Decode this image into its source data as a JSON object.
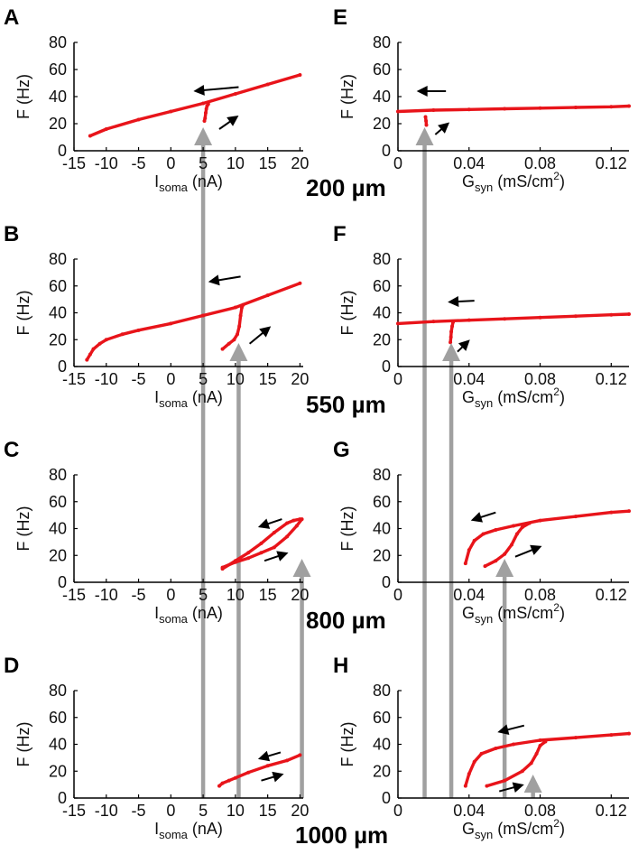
{
  "figure": {
    "distance_labels": [
      "200 µm",
      "550 µm",
      "800 µm",
      "1000 µm"
    ],
    "colors": {
      "curve": "#e8141a",
      "guide": "#a0a0a0",
      "arrow": "#000000",
      "axis": "#000000"
    }
  },
  "chart_data": [
    {
      "panel": "A",
      "type": "scatter",
      "xlabel": "Isoma (nA)",
      "xlabel_main": "I",
      "xlabel_sub": "soma",
      "xlabel_rest": " (nA)",
      "ylabel": "F (Hz)",
      "xlim": [
        -15,
        20.5
      ],
      "ylim": [
        0,
        80
      ],
      "xticks": [
        -15,
        -10,
        -5,
        0,
        5,
        10,
        15,
        20
      ],
      "xtick_labels": [
        "-15",
        "-10",
        "-5",
        "0",
        "5",
        "10",
        "15",
        "20"
      ],
      "yticks": [
        0,
        20,
        40,
        60,
        80
      ],
      "ytick_labels": [
        "0",
        "20",
        "40",
        "60",
        "80"
      ],
      "series": [
        {
          "points": [
            [
              -12.5,
              11
            ],
            [
              -10,
              16
            ],
            [
              -5,
              23
            ],
            [
              0,
              29
            ],
            [
              5,
              35
            ],
            [
              10,
              42
            ],
            [
              15,
              49
            ],
            [
              20,
              56
            ]
          ]
        },
        {
          "points": [
            [
              5.2,
              22
            ],
            [
              5.3,
              24
            ],
            [
              5.4,
              28
            ],
            [
              5.5,
              31
            ],
            [
              5.6,
              33
            ],
            [
              5.8,
              34.5
            ]
          ]
        }
      ],
      "arrows": [
        {
          "from": [
            10.5,
            47
          ],
          "to": [
            3.5,
            44
          ]
        },
        {
          "from": [
            7.5,
            16
          ],
          "to": [
            10.5,
            26
          ]
        }
      ],
      "guides": [
        5
      ]
    },
    {
      "panel": "B",
      "type": "scatter",
      "xlabel": "Isoma (nA)",
      "xlabel_main": "I",
      "xlabel_sub": "soma",
      "xlabel_rest": " (nA)",
      "ylabel": "F (Hz)",
      "xlim": [
        -15,
        20.5
      ],
      "ylim": [
        0,
        80
      ],
      "xticks": [
        -15,
        -10,
        -5,
        0,
        5,
        10,
        15,
        20
      ],
      "xtick_labels": [
        "-15",
        "-10",
        "-5",
        "0",
        "5",
        "10",
        "15",
        "20"
      ],
      "yticks": [
        0,
        20,
        40,
        60,
        80
      ],
      "ytick_labels": [
        "0",
        "20",
        "40",
        "60",
        "80"
      ],
      "series": [
        {
          "points": [
            [
              -13,
              5
            ],
            [
              -12.5,
              9
            ],
            [
              -12,
              13
            ],
            [
              -11,
              17
            ],
            [
              -10,
              20
            ],
            [
              -7.5,
              24
            ],
            [
              -5,
              27
            ],
            [
              0,
              32
            ],
            [
              5,
              38
            ],
            [
              10,
              44
            ],
            [
              15,
              53
            ],
            [
              20,
              62
            ]
          ]
        },
        {
          "points": [
            [
              8,
              13
            ],
            [
              9,
              17
            ],
            [
              9.8,
              20
            ],
            [
              10.3,
              24
            ],
            [
              10.6,
              30
            ],
            [
              10.8,
              38
            ],
            [
              11,
              44
            ],
            [
              11.2,
              46
            ]
          ]
        }
      ],
      "arrows": [
        {
          "from": [
            10.8,
            67
          ],
          "to": [
            5.8,
            63
          ]
        },
        {
          "from": [
            12.2,
            17
          ],
          "to": [
            15.5,
            30
          ]
        }
      ],
      "guides": [
        5,
        10.5
      ]
    },
    {
      "panel": "C",
      "type": "scatter",
      "xlabel": "Isoma (nA)",
      "xlabel_main": "I",
      "xlabel_sub": "soma",
      "xlabel_rest": " (nA)",
      "ylabel": "F (Hz)",
      "xlim": [
        -15,
        20.5
      ],
      "ylim": [
        0,
        80
      ],
      "xticks": [
        -15,
        -10,
        -5,
        0,
        5,
        10,
        15,
        20
      ],
      "xtick_labels": [
        "-15",
        "-10",
        "-5",
        "0",
        "5",
        "10",
        "15",
        "20"
      ],
      "yticks": [
        0,
        20,
        40,
        60,
        80
      ],
      "ytick_labels": [
        "0",
        "20",
        "40",
        "60",
        "80"
      ],
      "series": [
        {
          "points": [
            [
              8,
              10
            ],
            [
              10,
              16
            ],
            [
              12,
              22
            ],
            [
              14,
              29
            ],
            [
              16,
              37
            ],
            [
              18,
              44
            ],
            [
              19,
              46
            ],
            [
              20,
              47
            ]
          ]
        },
        {
          "points": [
            [
              8,
              11
            ],
            [
              10,
              15
            ],
            [
              12,
              18
            ],
            [
              14,
              22
            ],
            [
              16,
              26
            ],
            [
              18,
              34
            ],
            [
              19.5,
              42
            ],
            [
              20.3,
              47
            ]
          ]
        }
      ],
      "arrows": [
        {
          "from": [
            17.2,
            47
          ],
          "to": [
            13.5,
            41
          ]
        },
        {
          "from": [
            14.5,
            16
          ],
          "to": [
            18.2,
            22
          ]
        }
      ],
      "guides": [
        5,
        10.5,
        20.3
      ]
    },
    {
      "panel": "D",
      "type": "scatter",
      "xlabel": "Isoma (nA)",
      "xlabel_main": "I",
      "xlabel_sub": "soma",
      "xlabel_rest": " (nA)",
      "ylabel": "F (Hz)",
      "xlim": [
        -15,
        20.5
      ],
      "ylim": [
        0,
        80
      ],
      "xticks": [
        -15,
        -10,
        -5,
        0,
        5,
        10,
        15,
        20
      ],
      "xtick_labels": [
        "-15",
        "-10",
        "-5",
        "0",
        "5",
        "10",
        "15",
        "20"
      ],
      "yticks": [
        0,
        20,
        40,
        60,
        80
      ],
      "ytick_labels": [
        "0",
        "20",
        "40",
        "60",
        "80"
      ],
      "series": [
        {
          "points": [
            [
              7.5,
              9
            ],
            [
              8,
              11
            ],
            [
              9,
              13
            ],
            [
              10,
              15
            ],
            [
              12,
              19
            ],
            [
              15,
              24
            ],
            [
              18,
              28
            ],
            [
              20,
              32
            ]
          ]
        }
      ],
      "arrows": [
        {
          "from": [
            17,
            34
          ],
          "to": [
            13.5,
            29
          ]
        },
        {
          "from": [
            14,
            13
          ],
          "to": [
            17.5,
            18
          ]
        }
      ],
      "guides": [
        5,
        10.5,
        20.3
      ]
    },
    {
      "panel": "E",
      "type": "scatter",
      "xlabel": "Gsyn (mS/cm2)",
      "xlabel_main": "G",
      "xlabel_sub": "syn",
      "xlabel_rest": " (mS/cm",
      "xlabel_sup": "2",
      "xlabel_end": ")",
      "ylabel": "F (Hz)",
      "xlim": [
        0,
        0.13
      ],
      "ylim": [
        0,
        80
      ],
      "xticks": [
        0,
        0.04,
        0.08,
        0.12
      ],
      "xtick_labels": [
        "0",
        "0.04",
        "0.08",
        "0.12"
      ],
      "yticks": [
        0,
        20,
        40,
        60,
        80
      ],
      "ytick_labels": [
        "0",
        "20",
        "40",
        "60",
        "80"
      ],
      "series": [
        {
          "points": [
            [
              0,
              29
            ],
            [
              0.02,
              30
            ],
            [
              0.04,
              30.5
            ],
            [
              0.06,
              31
            ],
            [
              0.08,
              31.5
            ],
            [
              0.1,
              32
            ],
            [
              0.12,
              32.5
            ],
            [
              0.13,
              33
            ]
          ]
        },
        {
          "points": [
            [
              0.0155,
              25
            ],
            [
              0.0158,
              22
            ],
            [
              0.016,
              19
            ]
          ]
        }
      ],
      "arrows": [
        {
          "from": [
            0.027,
            44
          ],
          "to": [
            0.0105,
            44
          ]
        },
        {
          "from": [
            0.021,
            12
          ],
          "to": [
            0.029,
            21
          ]
        }
      ],
      "guides": [
        0.015
      ]
    },
    {
      "panel": "F",
      "type": "scatter",
      "xlabel": "Gsyn (mS/cm2)",
      "xlabel_main": "G",
      "xlabel_sub": "syn",
      "xlabel_rest": " (mS/cm",
      "xlabel_sup": "2",
      "xlabel_end": ")",
      "ylabel": "F (Hz)",
      "xlim": [
        0,
        0.13
      ],
      "ylim": [
        0,
        80
      ],
      "xticks": [
        0,
        0.04,
        0.08,
        0.12
      ],
      "xtick_labels": [
        "0",
        "0.04",
        "0.08",
        "0.12"
      ],
      "yticks": [
        0,
        20,
        40,
        60,
        80
      ],
      "ytick_labels": [
        "0",
        "20",
        "40",
        "60",
        "80"
      ],
      "series": [
        {
          "points": [
            [
              0,
              32
            ],
            [
              0.02,
              33.5
            ],
            [
              0.04,
              34.5
            ],
            [
              0.06,
              35.5
            ],
            [
              0.08,
              36.5
            ],
            [
              0.1,
              37.5
            ],
            [
              0.12,
              38.5
            ],
            [
              0.13,
              39
            ]
          ]
        },
        {
          "points": [
            [
              0.0295,
              18
            ],
            [
              0.0298,
              22
            ],
            [
              0.03,
              26
            ],
            [
              0.0305,
              30
            ],
            [
              0.031,
              33
            ]
          ]
        }
      ],
      "arrows": [
        {
          "from": [
            0.043,
            49
          ],
          "to": [
            0.028,
            48
          ]
        },
        {
          "from": [
            0.0335,
            11
          ],
          "to": [
            0.0405,
            20
          ]
        }
      ],
      "guides": [
        0.015,
        0.03
      ]
    },
    {
      "panel": "G",
      "type": "scatter",
      "xlabel": "Gsyn (mS/cm2)",
      "xlabel_main": "G",
      "xlabel_sub": "syn",
      "xlabel_rest": " (mS/cm",
      "xlabel_sup": "2",
      "xlabel_end": ")",
      "ylabel": "F (Hz)",
      "xlim": [
        0,
        0.13
      ],
      "ylim": [
        0,
        80
      ],
      "xticks": [
        0,
        0.04,
        0.08,
        0.12
      ],
      "xtick_labels": [
        "0",
        "0.04",
        "0.08",
        "0.12"
      ],
      "yticks": [
        0,
        20,
        40,
        60,
        80
      ],
      "ytick_labels": [
        "0",
        "20",
        "40",
        "60",
        "80"
      ],
      "series": [
        {
          "points": [
            [
              0.038,
              14
            ],
            [
              0.04,
              24
            ],
            [
              0.043,
              31
            ],
            [
              0.048,
              36
            ],
            [
              0.055,
              39
            ],
            [
              0.065,
              42
            ],
            [
              0.08,
              46
            ],
            [
              0.1,
              49
            ],
            [
              0.12,
              52
            ],
            [
              0.13,
              53
            ]
          ]
        },
        {
          "points": [
            [
              0.049,
              12
            ],
            [
              0.055,
              16
            ],
            [
              0.06,
              21
            ],
            [
              0.064,
              28
            ],
            [
              0.067,
              36
            ],
            [
              0.07,
              41
            ],
            [
              0.074,
              44
            ]
          ]
        }
      ],
      "arrows": [
        {
          "from": [
            0.055,
            52
          ],
          "to": [
            0.041,
            46
          ]
        },
        {
          "from": [
            0.066,
            19
          ],
          "to": [
            0.081,
            27
          ]
        }
      ],
      "guides": [
        0.015,
        0.03,
        0.06
      ]
    },
    {
      "panel": "H",
      "type": "scatter",
      "xlabel": "Gsyn (mS/cm2)",
      "xlabel_main": "G",
      "xlabel_sub": "syn",
      "xlabel_rest": " (mS/cm",
      "xlabel_sup": "2",
      "xlabel_end": ")",
      "ylabel": "F (Hz)",
      "xlim": [
        0,
        0.13
      ],
      "ylim": [
        0,
        80
      ],
      "xticks": [
        0,
        0.04,
        0.08,
        0.12
      ],
      "xtick_labels": [
        "0",
        "0.04",
        "0.08",
        "0.12"
      ],
      "yticks": [
        0,
        20,
        40,
        60,
        80
      ],
      "ytick_labels": [
        "0",
        "20",
        "40",
        "60",
        "80"
      ],
      "series": [
        {
          "points": [
            [
              0.038,
              9
            ],
            [
              0.04,
              18
            ],
            [
              0.043,
              27
            ],
            [
              0.047,
              33
            ],
            [
              0.055,
              37
            ],
            [
              0.065,
              40
            ],
            [
              0.08,
              43
            ],
            [
              0.1,
              45
            ],
            [
              0.12,
              47
            ],
            [
              0.13,
              48
            ]
          ]
        },
        {
          "points": [
            [
              0.05,
              9
            ],
            [
              0.06,
              13
            ],
            [
              0.07,
              20
            ],
            [
              0.075,
              26
            ],
            [
              0.078,
              33
            ],
            [
              0.08,
              39
            ],
            [
              0.083,
              42
            ]
          ]
        }
      ],
      "arrows": [
        {
          "from": [
            0.071,
            54
          ],
          "to": [
            0.056,
            49
          ]
        },
        {
          "from": [
            0.057,
            5
          ],
          "to": [
            0.071,
            10
          ]
        }
      ],
      "guides": [
        0.015,
        0.03,
        0.06,
        0.076
      ]
    }
  ]
}
